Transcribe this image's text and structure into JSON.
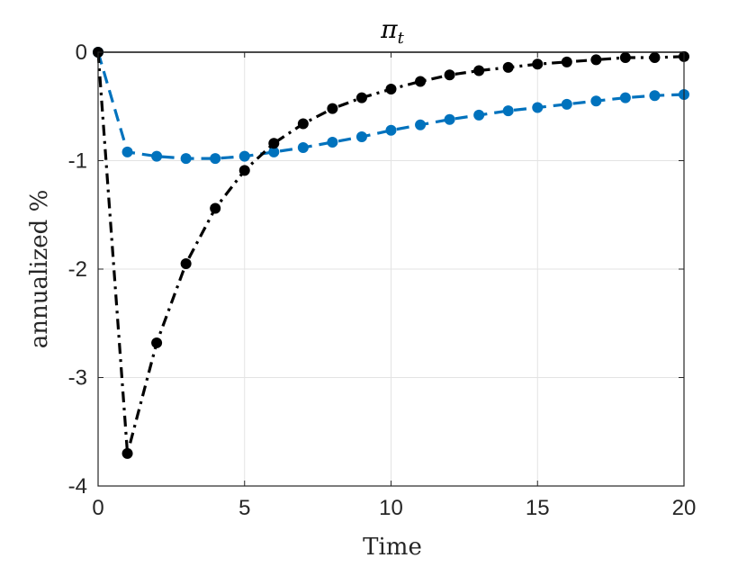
{
  "chart_data": {
    "type": "line",
    "title": "π",
    "title_subscript": "t",
    "xlabel": "Time",
    "ylabel": "annualized %",
    "xlim": [
      0,
      20
    ],
    "ylim": [
      -4,
      0
    ],
    "xticks": [
      0,
      5,
      10,
      15,
      20
    ],
    "xtick_labels": [
      "0",
      "5",
      "10",
      "15",
      "20"
    ],
    "yticks": [
      0,
      -1,
      -2,
      -3,
      -4
    ],
    "ytick_labels": [
      "0",
      "-1",
      "-2",
      "-3",
      "-4"
    ],
    "grid": true,
    "series": [
      {
        "name": "blue dashed",
        "color": "#0072BD",
        "line_style": "dashed",
        "x": [
          0,
          1,
          2,
          3,
          4,
          5,
          6,
          7,
          8,
          9,
          10,
          11,
          12,
          13,
          14,
          15,
          16,
          17,
          18,
          19,
          20
        ],
        "values": [
          0,
          -0.92,
          -0.96,
          -0.98,
          -0.98,
          -0.96,
          -0.92,
          -0.88,
          -0.83,
          -0.78,
          -0.72,
          -0.67,
          -0.62,
          -0.58,
          -0.54,
          -0.51,
          -0.48,
          -0.45,
          -0.42,
          -0.4,
          -0.39
        ]
      },
      {
        "name": "black dash-dot",
        "color": "#000000",
        "line_style": "dashdot",
        "x": [
          0,
          1,
          2,
          3,
          4,
          5,
          6,
          7,
          8,
          9,
          10,
          11,
          12,
          13,
          14,
          15,
          16,
          17,
          18,
          19,
          20
        ],
        "values": [
          0,
          -3.7,
          -2.68,
          -1.95,
          -1.44,
          -1.09,
          -0.84,
          -0.66,
          -0.52,
          -0.42,
          -0.34,
          -0.27,
          -0.21,
          -0.17,
          -0.14,
          -0.11,
          -0.09,
          -0.07,
          -0.05,
          -0.05,
          -0.04
        ]
      }
    ]
  }
}
